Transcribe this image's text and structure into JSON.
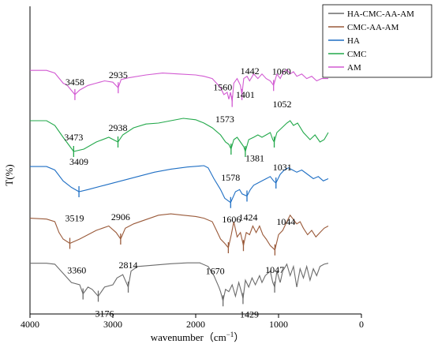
{
  "chart_data": {
    "type": "line",
    "xlabel": "wavenumber（cm",
    "xlabel_sup": "−1",
    "xlabel_close": "）",
    "ylabel": "T(%)",
    "xlim": [
      4000,
      0
    ],
    "x_ticks": [
      {
        "value": 4000,
        "label": "4000"
      },
      {
        "value": 3000,
        "label": "3000"
      },
      {
        "value": 2000,
        "label": "2000"
      },
      {
        "value": 1000,
        "label": "1000"
      },
      {
        "value": 0,
        "label": "0"
      }
    ],
    "legend_position": "top-right",
    "series": [
      {
        "name": "HA-CMC-AA-AM",
        "color": "#6b6b6b",
        "points": [
          [
            4000,
            -0.03
          ],
          [
            3800,
            -0.03
          ],
          [
            3700,
            -0.05
          ],
          [
            3600,
            -0.25
          ],
          [
            3500,
            -0.45
          ],
          [
            3400,
            -0.5
          ],
          [
            3360,
            -0.7
          ],
          [
            3300,
            -0.55
          ],
          [
            3250,
            -0.6
          ],
          [
            3176,
            -0.75
          ],
          [
            3100,
            -0.55
          ],
          [
            3000,
            -0.5
          ],
          [
            2950,
            -0.35
          ],
          [
            2880,
            -0.28
          ],
          [
            2814,
            -0.55
          ],
          [
            2780,
            -0.2
          ],
          [
            2700,
            -0.1
          ],
          [
            2500,
            -0.07
          ],
          [
            2300,
            -0.04
          ],
          [
            2100,
            -0.02
          ],
          [
            1950,
            -0.02
          ],
          [
            1850,
            -0.1
          ],
          [
            1780,
            -0.3
          ],
          [
            1720,
            -0.55
          ],
          [
            1700,
            -0.65
          ],
          [
            1670,
            -0.85
          ],
          [
            1640,
            -0.6
          ],
          [
            1600,
            -0.65
          ],
          [
            1560,
            -0.5
          ],
          [
            1520,
            -0.75
          ],
          [
            1480,
            -0.45
          ],
          [
            1450,
            -0.65
          ],
          [
            1429,
            -0.8
          ],
          [
            1400,
            -0.4
          ],
          [
            1360,
            -0.55
          ],
          [
            1320,
            -0.35
          ],
          [
            1280,
            -0.5
          ],
          [
            1230,
            -0.3
          ],
          [
            1200,
            -0.45
          ],
          [
            1160,
            -0.3
          ],
          [
            1100,
            -0.2
          ],
          [
            1070,
            -0.45
          ],
          [
            1047,
            -0.55
          ],
          [
            1020,
            -0.2
          ],
          [
            980,
            -0.45
          ],
          [
            950,
            -0.2
          ],
          [
            900,
            -0.05
          ],
          [
            860,
            -0.3
          ],
          [
            820,
            -0.1
          ],
          [
            780,
            -0.55
          ],
          [
            740,
            -0.15
          ],
          [
            700,
            -0.35
          ],
          [
            660,
            -0.1
          ],
          [
            620,
            -0.4
          ],
          [
            580,
            -0.15
          ],
          [
            540,
            -0.3
          ],
          [
            500,
            -0.1
          ],
          [
            450,
            -0.05
          ],
          [
            400,
            -0.03
          ]
        ],
        "markers": [
          3360,
          3176,
          2814,
          1670,
          1429,
          1047
        ]
      },
      {
        "name": "CMC-AA-AM",
        "color": "#9a5a3a",
        "points": [
          [
            4000,
            -0.12
          ],
          [
            3800,
            -0.14
          ],
          [
            3700,
            -0.2
          ],
          [
            3650,
            -0.45
          ],
          [
            3600,
            -0.6
          ],
          [
            3519,
            -0.7
          ],
          [
            3400,
            -0.6
          ],
          [
            3200,
            -0.4
          ],
          [
            3050,
            -0.3
          ],
          [
            2960,
            -0.45
          ],
          [
            2906,
            -0.6
          ],
          [
            2850,
            -0.35
          ],
          [
            2750,
            -0.25
          ],
          [
            2600,
            -0.15
          ],
          [
            2450,
            -0.05
          ],
          [
            2300,
            -0.02
          ],
          [
            2150,
            -0.05
          ],
          [
            2000,
            -0.08
          ],
          [
            1900,
            -0.12
          ],
          [
            1800,
            -0.2
          ],
          [
            1750,
            -0.4
          ],
          [
            1700,
            -0.6
          ],
          [
            1650,
            -0.7
          ],
          [
            1606,
            -0.8
          ],
          [
            1570,
            -0.5
          ],
          [
            1540,
            -0.2
          ],
          [
            1500,
            -0.55
          ],
          [
            1460,
            -0.45
          ],
          [
            1424,
            -0.75
          ],
          [
            1390,
            -0.45
          ],
          [
            1350,
            -0.5
          ],
          [
            1310,
            -0.3
          ],
          [
            1270,
            -0.45
          ],
          [
            1230,
            -0.3
          ],
          [
            1190,
            -0.5
          ],
          [
            1150,
            -0.6
          ],
          [
            1100,
            -0.75
          ],
          [
            1044,
            -0.85
          ],
          [
            1000,
            -0.5
          ],
          [
            950,
            -0.4
          ],
          [
            900,
            -0.2
          ],
          [
            860,
            -0.05
          ],
          [
            820,
            -0.15
          ],
          [
            780,
            -0.25
          ],
          [
            740,
            -0.2
          ],
          [
            700,
            -0.35
          ],
          [
            650,
            -0.5
          ],
          [
            600,
            -0.4
          ],
          [
            550,
            -0.55
          ],
          [
            500,
            -0.45
          ],
          [
            450,
            -0.35
          ],
          [
            400,
            -0.3
          ]
        ],
        "markers": [
          3519,
          2906,
          1606,
          1424,
          1044
        ]
      },
      {
        "name": "HA",
        "color": "#1f6fc4",
        "points": [
          [
            4000,
            -0.02
          ],
          [
            3800,
            -0.02
          ],
          [
            3700,
            -0.1
          ],
          [
            3600,
            -0.35
          ],
          [
            3500,
            -0.5
          ],
          [
            3409,
            -0.6
          ],
          [
            3300,
            -0.55
          ],
          [
            3100,
            -0.45
          ],
          [
            2900,
            -0.35
          ],
          [
            2700,
            -0.25
          ],
          [
            2500,
            -0.15
          ],
          [
            2300,
            -0.08
          ],
          [
            2100,
            -0.03
          ],
          [
            1900,
            0
          ],
          [
            1850,
            -0.05
          ],
          [
            1780,
            -0.3
          ],
          [
            1700,
            -0.55
          ],
          [
            1650,
            -0.75
          ],
          [
            1578,
            -0.85
          ],
          [
            1520,
            -0.6
          ],
          [
            1470,
            -0.55
          ],
          [
            1440,
            -0.65
          ],
          [
            1381,
            -0.7
          ],
          [
            1340,
            -0.55
          ],
          [
            1300,
            -0.45
          ],
          [
            1250,
            -0.4
          ],
          [
            1200,
            -0.35
          ],
          [
            1150,
            -0.3
          ],
          [
            1100,
            -0.25
          ],
          [
            1060,
            -0.35
          ],
          [
            1031,
            -0.4
          ],
          [
            980,
            -0.2
          ],
          [
            930,
            -0.1
          ],
          [
            880,
            -0.05
          ],
          [
            830,
            -0.1
          ],
          [
            780,
            -0.15
          ],
          [
            720,
            -0.1
          ],
          [
            650,
            -0.2
          ],
          [
            580,
            -0.3
          ],
          [
            520,
            -0.25
          ],
          [
            460,
            -0.35
          ],
          [
            400,
            -0.3
          ]
        ],
        "markers": [
          3409,
          1578,
          1381,
          1031
        ]
      },
      {
        "name": "CMC",
        "color": "#22a84a",
        "points": [
          [
            4000,
            -0.05
          ],
          [
            3800,
            -0.05
          ],
          [
            3700,
            -0.15
          ],
          [
            3600,
            -0.4
          ],
          [
            3473,
            -0.7
          ],
          [
            3350,
            -0.65
          ],
          [
            3200,
            -0.5
          ],
          [
            3050,
            -0.4
          ],
          [
            2938,
            -0.5
          ],
          [
            2880,
            -0.35
          ],
          [
            2750,
            -0.2
          ],
          [
            2600,
            -0.12
          ],
          [
            2450,
            -0.1
          ],
          [
            2300,
            -0.05
          ],
          [
            2150,
            0
          ],
          [
            2000,
            -0.03
          ],
          [
            1900,
            -0.1
          ],
          [
            1800,
            -0.2
          ],
          [
            1700,
            -0.35
          ],
          [
            1640,
            -0.5
          ],
          [
            1600,
            -0.55
          ],
          [
            1573,
            -0.65
          ],
          [
            1540,
            -0.45
          ],
          [
            1500,
            -0.4
          ],
          [
            1460,
            -0.5
          ],
          [
            1420,
            -0.6
          ],
          [
            1401,
            -0.7
          ],
          [
            1360,
            -0.45
          ],
          [
            1300,
            -0.4
          ],
          [
            1250,
            -0.35
          ],
          [
            1200,
            -0.4
          ],
          [
            1150,
            -0.35
          ],
          [
            1100,
            -0.3
          ],
          [
            1070,
            -0.45
          ],
          [
            1052,
            -0.5
          ],
          [
            1020,
            -0.3
          ],
          [
            960,
            -0.2
          ],
          [
            900,
            -0.1
          ],
          [
            860,
            -0.05
          ],
          [
            820,
            -0.15
          ],
          [
            770,
            -0.1
          ],
          [
            700,
            -0.3
          ],
          [
            620,
            -0.45
          ],
          [
            560,
            -0.35
          ],
          [
            500,
            -0.5
          ],
          [
            450,
            -0.45
          ],
          [
            400,
            -0.3
          ]
        ],
        "markers": [
          3473,
          2938,
          1573,
          1401,
          1052
        ]
      },
      {
        "name": "AM",
        "color": "#d25ad2",
        "points": [
          [
            4000,
            -0.02
          ],
          [
            3800,
            -0.02
          ],
          [
            3700,
            -0.08
          ],
          [
            3600,
            -0.3
          ],
          [
            3550,
            -0.35
          ],
          [
            3458,
            -0.55
          ],
          [
            3400,
            -0.45
          ],
          [
            3300,
            -0.35
          ],
          [
            3200,
            -0.3
          ],
          [
            3100,
            -0.25
          ],
          [
            3000,
            -0.28
          ],
          [
            2935,
            -0.4
          ],
          [
            2900,
            -0.22
          ],
          [
            2800,
            -0.18
          ],
          [
            2600,
            -0.12
          ],
          [
            2400,
            -0.08
          ],
          [
            2200,
            -0.1
          ],
          [
            2000,
            -0.12
          ],
          [
            1900,
            -0.15
          ],
          [
            1800,
            -0.2
          ],
          [
            1750,
            -0.3
          ],
          [
            1700,
            -0.4
          ],
          [
            1660,
            -0.55
          ],
          [
            1620,
            -0.5
          ],
          [
            1600,
            -0.65
          ],
          [
            1580,
            -0.5
          ],
          [
            1560,
            -0.7
          ],
          [
            1540,
            -0.3
          ],
          [
            1500,
            -0.2
          ],
          [
            1460,
            -0.35
          ],
          [
            1442,
            -0.55
          ],
          [
            1420,
            -0.2
          ],
          [
            1380,
            -0.15
          ],
          [
            1350,
            -0.25
          ],
          [
            1300,
            -0.1
          ],
          [
            1250,
            -0.2
          ],
          [
            1200,
            -0.1
          ],
          [
            1150,
            -0.2
          ],
          [
            1100,
            -0.25
          ],
          [
            1060,
            -0.35
          ],
          [
            1020,
            -0.1
          ],
          [
            980,
            -0.2
          ],
          [
            940,
            -0.05
          ],
          [
            900,
            0
          ],
          [
            860,
            -0.1
          ],
          [
            820,
            -0.05
          ],
          [
            780,
            -0.15
          ],
          [
            720,
            -0.1
          ],
          [
            660,
            -0.2
          ],
          [
            600,
            -0.15
          ],
          [
            540,
            -0.25
          ],
          [
            480,
            -0.2
          ],
          [
            400,
            -0.2
          ]
        ],
        "markers": [
          3458,
          2935,
          1560,
          1442,
          1060
        ]
      }
    ],
    "annotations": [
      {
        "series": "AM",
        "label": "3458",
        "x": 3458
      },
      {
        "series": "AM",
        "label": "2935",
        "x": 2935
      },
      {
        "series": "AM",
        "label": "1560",
        "x": 1560
      },
      {
        "series": "AM",
        "label": "1442",
        "x": 1442
      },
      {
        "series": "AM",
        "label": "1060",
        "x": 1060
      },
      {
        "series": "CMC",
        "label": "1401",
        "x": 1401
      },
      {
        "series": "CMC",
        "label": "1052",
        "x": 1052
      },
      {
        "series": "CMC",
        "label": "3473",
        "x": 3473
      },
      {
        "series": "CMC",
        "label": "2938",
        "x": 2938
      },
      {
        "series": "CMC",
        "label": "1573",
        "x": 1573
      },
      {
        "series": "HA",
        "label": "3409",
        "x": 3409
      },
      {
        "series": "HA",
        "label": "1381",
        "x": 1381
      },
      {
        "series": "HA",
        "label": "1031",
        "x": 1031
      },
      {
        "series": "HA",
        "label": "1578",
        "x": 1578
      },
      {
        "series": "CMC-AA-AM",
        "label": "3519",
        "x": 3519
      },
      {
        "series": "CMC-AA-AM",
        "label": "2906",
        "x": 2906
      },
      {
        "series": "CMC-AA-AM",
        "label": "1606",
        "x": 1606
      },
      {
        "series": "CMC-AA-AM",
        "label": "1424",
        "x": 1424
      },
      {
        "series": "CMC-AA-AM",
        "label": "1044",
        "x": 1044
      },
      {
        "series": "HA-CMC-AA-AM",
        "label": "2814",
        "x": 2814
      },
      {
        "series": "HA-CMC-AA-AM",
        "label": "3360",
        "x": 3360
      },
      {
        "series": "HA-CMC-AA-AM",
        "label": "1670",
        "x": 1670
      },
      {
        "series": "HA-CMC-AA-AM",
        "label": "1047",
        "x": 1047
      },
      {
        "series": "HA-CMC-AA-AM",
        "label": "3176",
        "x": 3176
      },
      {
        "series": "HA-CMC-AA-AM",
        "label": "1429",
        "x": 1429
      }
    ]
  }
}
